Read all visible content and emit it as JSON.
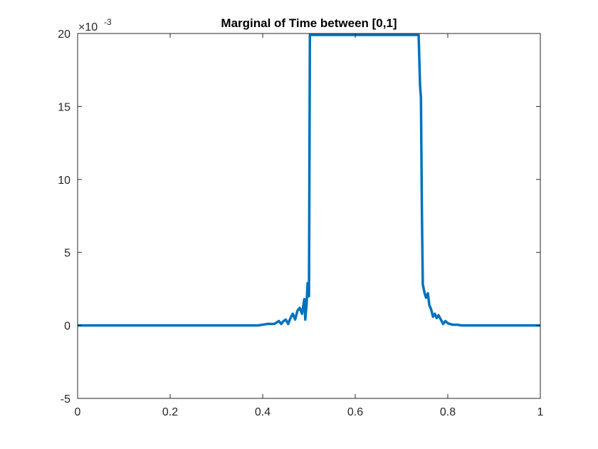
{
  "chart_data": {
    "type": "line",
    "title": "Marginal of Time between [0,1]",
    "xlabel": "",
    "ylabel": "",
    "xlim": [
      0,
      1
    ],
    "ylim": [
      -5,
      20
    ],
    "y_exponent_label": {
      "base": "×10",
      "exponent": "-3"
    },
    "x_ticks": [
      0,
      0.2,
      0.4,
      0.6,
      0.8,
      1
    ],
    "x_tick_labels": [
      "0",
      "0.2",
      "0.4",
      "0.6",
      "0.8",
      "1"
    ],
    "y_ticks": [
      -5,
      0,
      5,
      10,
      15,
      20
    ],
    "y_tick_labels": [
      "-5",
      "0",
      "5",
      "10",
      "15",
      "20"
    ],
    "grid": false,
    "box": true,
    "series": [
      {
        "color": "#0072BD",
        "x": [
          0,
          0.1,
          0.2,
          0.3,
          0.36,
          0.39,
          0.4,
          0.41,
          0.42,
          0.425,
          0.43,
          0.435,
          0.44,
          0.445,
          0.45,
          0.455,
          0.46,
          0.465,
          0.47,
          0.475,
          0.48,
          0.485,
          0.49,
          0.492,
          0.495,
          0.497,
          0.5,
          0.502,
          0.504,
          0.6,
          0.7,
          0.737,
          0.74,
          0.742,
          0.744,
          0.746,
          0.75,
          0.753,
          0.757,
          0.76,
          0.764,
          0.768,
          0.772,
          0.776,
          0.78,
          0.785,
          0.79,
          0.795,
          0.8,
          0.81,
          0.82,
          0.83,
          0.85,
          0.9,
          1
        ],
        "y": [
          0,
          0,
          0,
          0,
          0,
          0,
          0.05,
          0.1,
          0.1,
          0.1,
          0.2,
          0.3,
          0.1,
          0.3,
          0.4,
          0.1,
          0.5,
          0.8,
          0.4,
          1.0,
          1.2,
          0.8,
          1.8,
          0.4,
          1.5,
          2.9,
          2.0,
          19.9,
          19.9,
          19.9,
          19.9,
          19.9,
          16.5,
          15.6,
          8.0,
          2.8,
          2.2,
          1.9,
          2.2,
          1.4,
          1.1,
          0.6,
          0.8,
          0.5,
          0.7,
          0.4,
          0.1,
          0.3,
          0.15,
          0.05,
          0.05,
          0,
          0,
          0,
          0
        ]
      }
    ]
  }
}
